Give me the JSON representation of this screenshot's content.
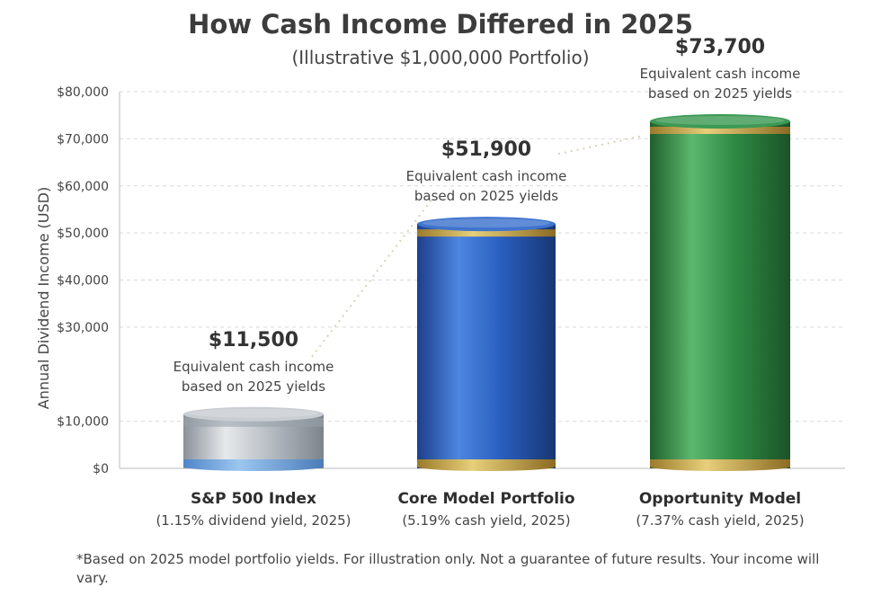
{
  "title": "How Cash Income Differed in 2025",
  "subtitle": "(Illustrative $1,000,000 Portfolio)",
  "footnote": "*Based on 2025 model portfolio yields. For illustration only. Not a guarantee of future results. Your income will vary.",
  "chart_data": {
    "type": "bar",
    "ylabel": "Annual Dividend Income (USD)",
    "ylim": [
      0,
      80000
    ],
    "yticks": [
      0,
      10000,
      30000,
      40000,
      50000,
      60000,
      70000,
      80000
    ],
    "ytick_labels": [
      "$0",
      "$10,000",
      "$30,000",
      "$40,000",
      "$50,000",
      "$60,000",
      "$70,000",
      "$80,000"
    ],
    "grid": true,
    "categories": [
      "S&P 500 Index",
      "Core Model Portfolio",
      "Opportunity Model"
    ],
    "category_sublabels": [
      "(1.15% dividend yield,  2025)",
      "(5.19% cash yield, 2025)",
      "(7.37% cash yield, 2025)"
    ],
    "values": [
      11500,
      51900,
      73700
    ],
    "value_labels": [
      "$11,500",
      "$51,900",
      "$73,700"
    ],
    "annotation_lines": [
      "Equivalent cash income",
      "based on 2025 yields"
    ],
    "colors": [
      "#aeb4bb",
      "#2a5fc0",
      "#2f8a44"
    ]
  }
}
